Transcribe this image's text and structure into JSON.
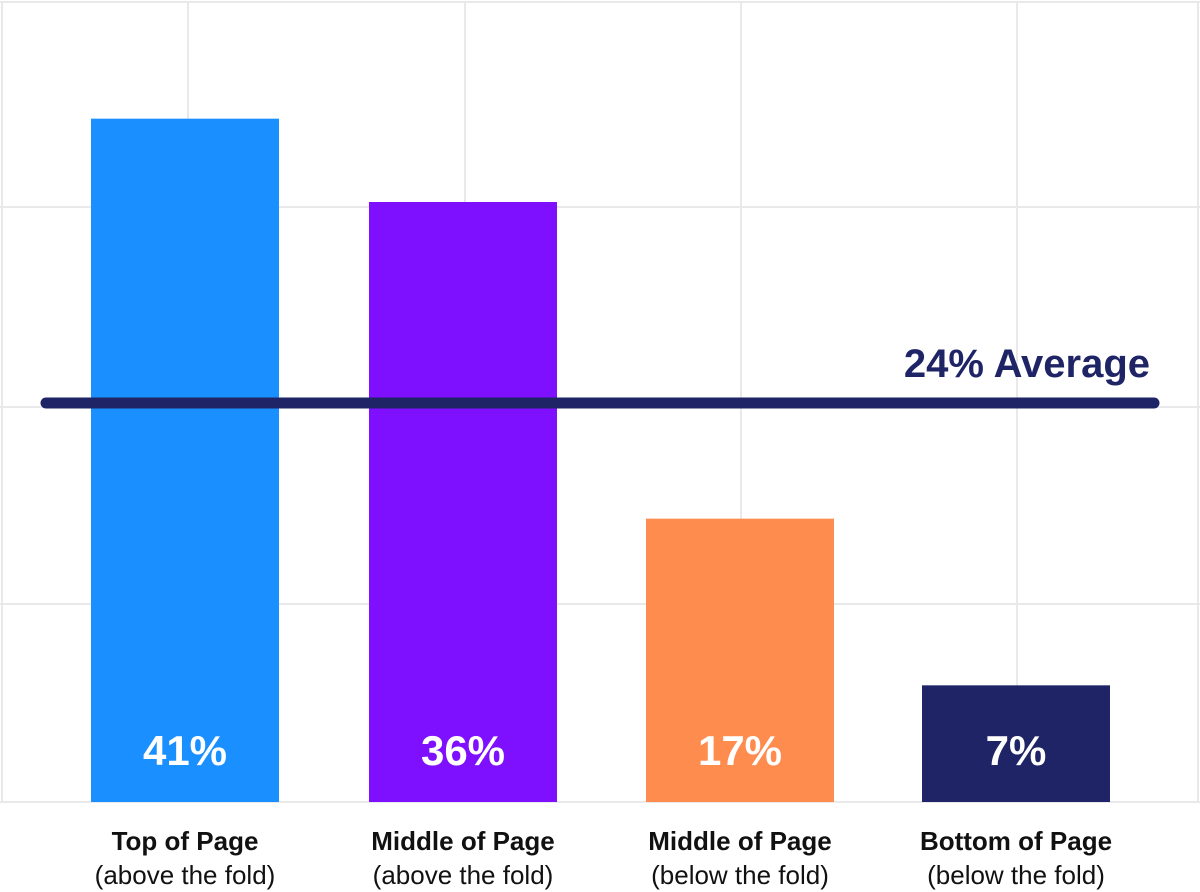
{
  "chart_data": {
    "type": "bar",
    "categories": [
      {
        "title": "Top of Page",
        "subtitle": "(above the fold)"
      },
      {
        "title": "Middle of Page",
        "subtitle": "(above the fold)"
      },
      {
        "title": "Middle of Page",
        "subtitle": "(below the fold)"
      },
      {
        "title": "Bottom of Page",
        "subtitle": "(below the fold)"
      }
    ],
    "values": [
      41,
      36,
      17,
      7
    ],
    "value_labels": [
      "41%",
      "36%",
      "17%",
      "7%"
    ],
    "colors": [
      "#1a8fff",
      "#7f0fff",
      "#ff8c4f",
      "#1e2466"
    ],
    "reference_line": {
      "value": 24,
      "label": "24% Average",
      "color": "#1e2466"
    },
    "ylim": [
      0,
      48
    ],
    "grid": true,
    "grid_color": "#e9e9ec"
  }
}
